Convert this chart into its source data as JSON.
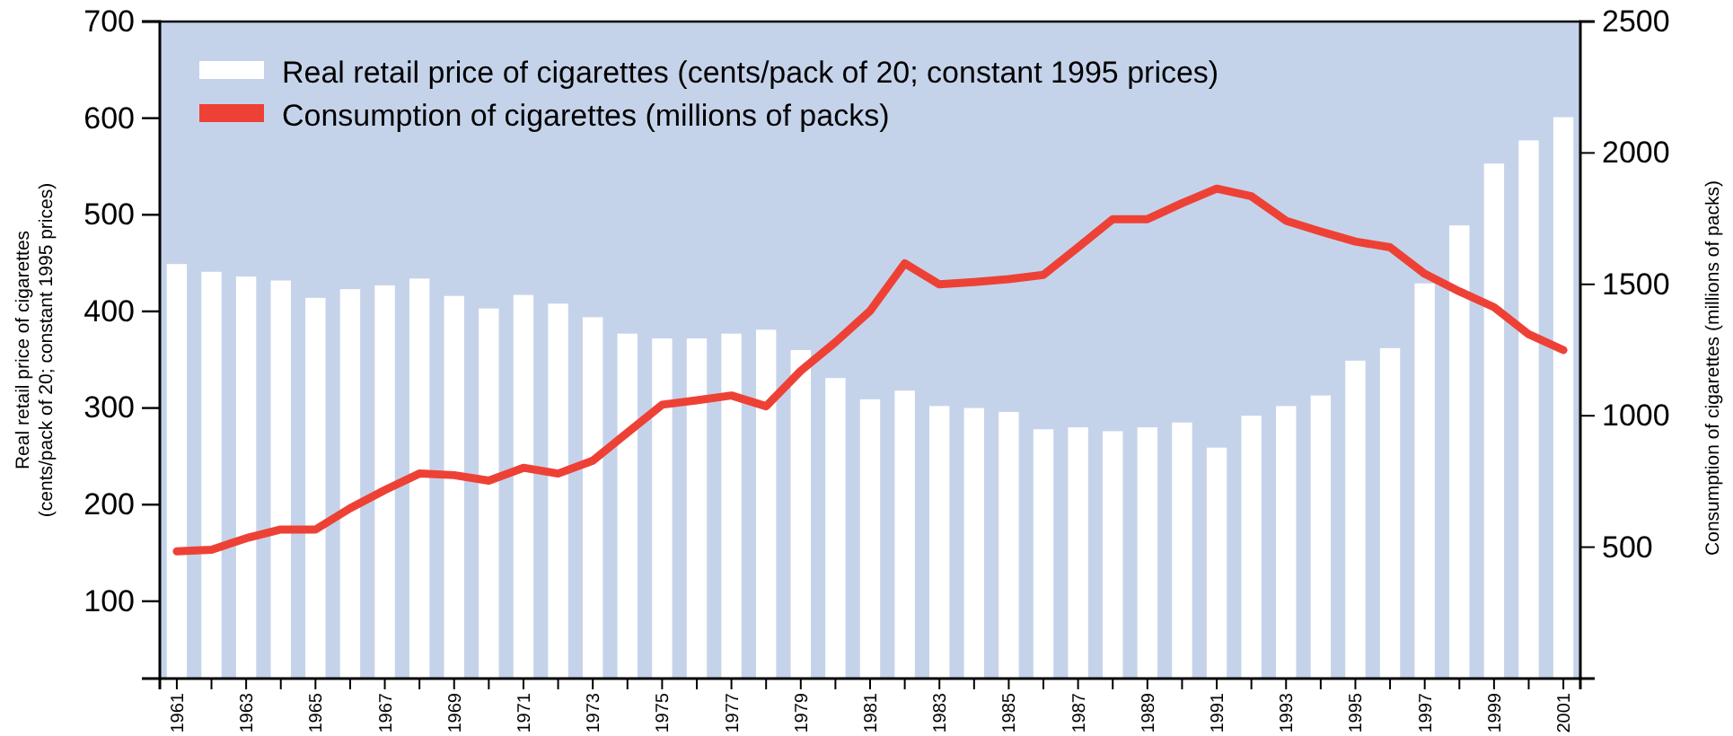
{
  "chart_data": {
    "type": "bar",
    "ylabel": "Real retail price of cigarettes\n(cents/pack of 20; constant 1995 prices)",
    "y2label": "Consumption of cigarettes (millions of packs)",
    "categories": [
      "1961",
      null,
      "1963",
      null,
      "1965",
      null,
      "1967",
      null,
      "1969",
      null,
      "1971",
      null,
      "1973",
      null,
      "1975",
      null,
      "1977",
      null,
      "1979",
      null,
      "1981",
      null,
      "1983",
      null,
      "1985",
      null,
      "1987",
      null,
      "1989",
      null,
      "1991",
      null,
      "1993",
      null,
      "1995",
      null,
      "1997",
      null,
      "1999",
      null,
      "2001"
    ],
    "series": [
      {
        "name": "Real retail price of cigarettes (cents/pack of 20; constant 1995 prices)",
        "color": "#ffffff",
        "values": [
          449,
          441,
          436,
          432,
          414,
          423,
          427,
          434,
          416,
          403,
          417,
          408,
          394,
          377,
          372,
          372,
          377,
          381,
          360,
          331,
          309,
          318,
          302,
          300,
          296,
          278,
          280,
          276,
          280,
          285,
          259,
          292,
          302,
          313,
          349,
          362,
          429,
          489,
          553,
          577,
          601
        ]
      },
      {
        "name": "Consumption of cigarettes (millions of packs)",
        "type": "line",
        "axis": "y2",
        "color": "#ee4136",
        "values": [
          484,
          490,
          534,
          567,
          567,
          648,
          717,
          780,
          774,
          753,
          802,
          780,
          829,
          936,
          1042,
          1059,
          1077,
          1036,
          1171,
          1280,
          1399,
          1580,
          1500,
          1509,
          1520,
          1536,
          1641,
          1748,
          1748,
          1809,
          1864,
          1835,
          1742,
          1701,
          1663,
          1641,
          1540,
          1473,
          1413,
          1310,
          1250
        ]
      }
    ],
    "ylim": [
      20,
      700
    ],
    "yticks": [
      100,
      200,
      300,
      400,
      500,
      600,
      700
    ],
    "y2lim": [
      0,
      2500
    ],
    "y2ticks": [
      500,
      1000,
      1500,
      2000,
      2500
    ],
    "legend": "top left",
    "grid": false
  }
}
